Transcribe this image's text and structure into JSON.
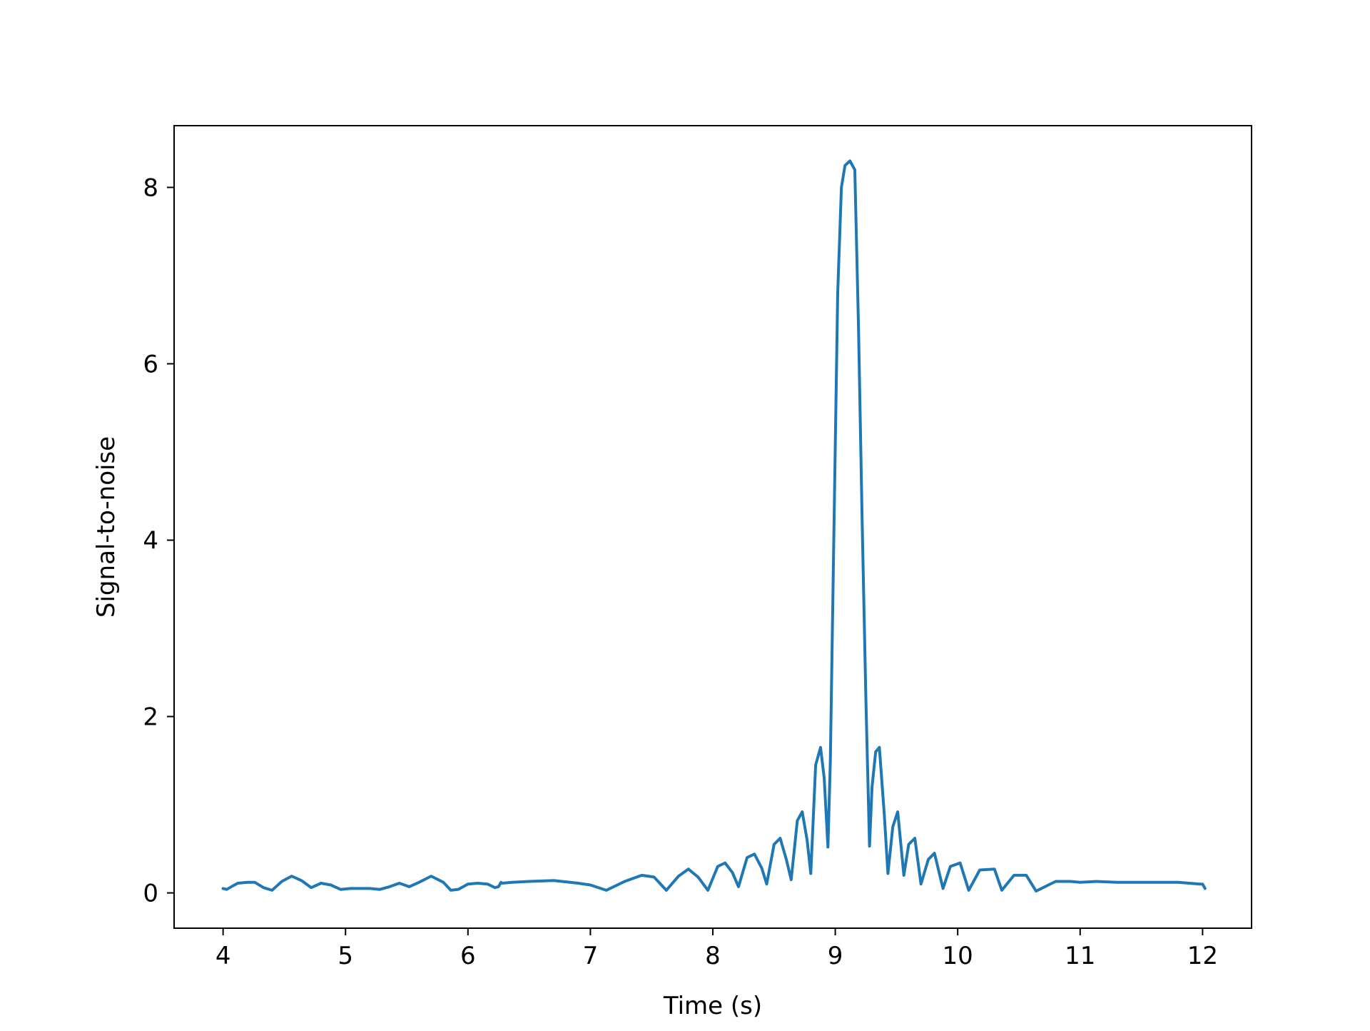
{
  "chart_data": {
    "type": "line",
    "title": "",
    "xlabel": "Time (s)",
    "ylabel": "Signal-to-noise",
    "xlim": [
      3.6,
      12.4
    ],
    "ylim": [
      -0.4,
      8.7
    ],
    "xticks": [
      4,
      5,
      6,
      7,
      8,
      9,
      10,
      11,
      12
    ],
    "yticks": [
      0,
      2,
      4,
      6,
      8
    ],
    "xtick_labels": [
      "4",
      "5",
      "6",
      "7",
      "8",
      "9",
      "10",
      "11",
      "12"
    ],
    "ytick_labels": [
      "0",
      "2",
      "4",
      "6",
      "8"
    ],
    "grid": false,
    "legend": "none",
    "line_color": "#1f77b4",
    "series": [
      {
        "x": [
          4.0,
          4.03,
          4.08,
          4.12,
          4.2,
          4.26,
          4.33,
          4.4,
          4.48,
          4.56,
          4.64,
          4.72,
          4.8,
          4.88,
          4.96,
          5.04,
          5.12,
          5.2,
          5.28,
          5.36,
          5.44,
          5.52,
          5.6,
          5.7,
          5.8,
          5.86,
          5.92,
          6.0,
          6.08,
          6.16,
          6.22,
          6.25,
          6.27,
          6.28,
          6.36,
          6.5,
          6.7,
          6.9,
          7.0,
          7.13,
          7.28,
          7.42,
          7.52,
          7.62,
          7.72,
          7.8,
          7.88,
          7.96,
          8.04,
          8.1,
          8.16,
          8.21,
          8.28,
          8.34,
          8.4,
          8.44,
          8.5,
          8.55,
          8.6,
          8.64,
          8.69,
          8.73,
          8.77,
          8.8,
          8.84,
          8.88,
          8.91,
          8.94,
          8.96,
          8.99,
          9.02,
          9.05,
          9.08,
          9.12,
          9.16,
          9.19,
          9.22,
          9.25,
          9.28,
          9.3,
          9.33,
          9.36,
          9.4,
          9.43,
          9.47,
          9.51,
          9.56,
          9.6,
          9.65,
          9.7,
          9.76,
          9.81,
          9.88,
          9.94,
          10.02,
          10.09,
          10.18,
          10.3,
          10.36,
          10.46,
          10.56,
          10.64,
          10.8,
          10.92,
          11.0,
          11.13,
          11.3,
          11.55,
          11.8,
          11.98,
          12.0,
          12.02
        ],
        "y": [
          0.05,
          0.04,
          0.08,
          0.11,
          0.12,
          0.12,
          0.06,
          0.03,
          0.13,
          0.19,
          0.14,
          0.06,
          0.11,
          0.09,
          0.04,
          0.05,
          0.05,
          0.05,
          0.04,
          0.07,
          0.11,
          0.07,
          0.12,
          0.19,
          0.12,
          0.03,
          0.04,
          0.1,
          0.11,
          0.1,
          0.06,
          0.07,
          0.12,
          0.11,
          0.12,
          0.13,
          0.14,
          0.11,
          0.09,
          0.03,
          0.13,
          0.2,
          0.18,
          0.03,
          0.19,
          0.27,
          0.18,
          0.03,
          0.3,
          0.34,
          0.23,
          0.07,
          0.4,
          0.44,
          0.28,
          0.1,
          0.55,
          0.62,
          0.38,
          0.15,
          0.82,
          0.92,
          0.6,
          0.22,
          1.45,
          1.65,
          1.3,
          0.52,
          1.5,
          4.2,
          6.8,
          8.0,
          8.25,
          8.3,
          8.2,
          6.4,
          4.2,
          2.2,
          0.53,
          1.2,
          1.6,
          1.65,
          0.9,
          0.22,
          0.75,
          0.92,
          0.2,
          0.55,
          0.62,
          0.1,
          0.38,
          0.45,
          0.05,
          0.3,
          0.34,
          0.03,
          0.26,
          0.27,
          0.03,
          0.2,
          0.2,
          0.02,
          0.13,
          0.13,
          0.12,
          0.13,
          0.12,
          0.12,
          0.12,
          0.1,
          0.1,
          0.05
        ]
      }
    ]
  }
}
